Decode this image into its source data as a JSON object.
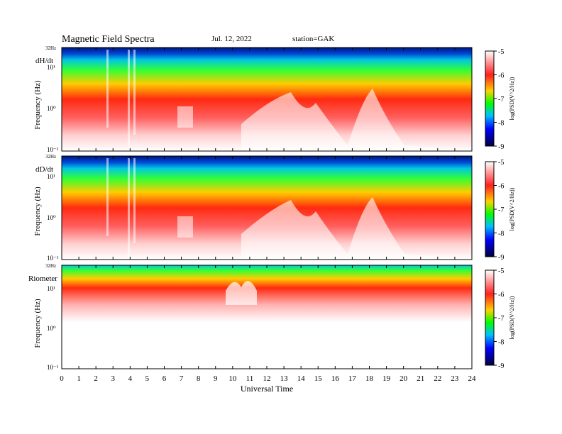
{
  "header": {
    "title": "Magnetic  Field  Spectra",
    "date": "Jul.  12, 2022",
    "station": "station=GAK"
  },
  "colorbar": {
    "label": "log(PSD(V^2/Hz))",
    "ticks": [
      "-5",
      "-6",
      "-7",
      "-8",
      "-9"
    ],
    "range": [
      -9,
      -5
    ],
    "stops": [
      "#ffffff",
      "#ff2020",
      "#ffd000",
      "#00ff00",
      "#00c0ff",
      "#0000ff",
      "#000040"
    ]
  },
  "chart_data": [
    {
      "type": "heatmap",
      "panel_label": "dH/dt",
      "ylabel": "Frequency  (Hz)",
      "yticks": [
        "32Hz",
        "10¹",
        "10⁰",
        "10⁻¹"
      ],
      "ylim": [
        0.1,
        32
      ],
      "xlabel": "",
      "xlim": [
        0,
        24
      ],
      "zlim": [
        -9,
        -5
      ],
      "scale": "log-frequency"
    },
    {
      "type": "heatmap",
      "panel_label": "dD/dt",
      "ylabel": "Frequency  (Hz)",
      "yticks": [
        "32Hz",
        "10¹",
        "10⁰",
        "10⁻¹"
      ],
      "ylim": [
        0.1,
        32
      ],
      "xlabel": "",
      "xlim": [
        0,
        24
      ],
      "zlim": [
        -9,
        -5
      ],
      "scale": "log-frequency"
    },
    {
      "type": "heatmap",
      "panel_label": "Riometer",
      "ylabel": "Frequency  (Hz)",
      "yticks": [
        "32Hz",
        "10¹",
        "10⁰",
        "10⁻¹"
      ],
      "ylim": [
        0.1,
        32
      ],
      "xlabel": "Universal  Time",
      "xticks": [
        "0",
        "1",
        "2",
        "3",
        "4",
        "5",
        "6",
        "7",
        "8",
        "9",
        "10",
        "11",
        "12",
        "13",
        "14",
        "15",
        "16",
        "17",
        "18",
        "19",
        "20",
        "21",
        "22",
        "23",
        "24"
      ],
      "xlim": [
        0,
        24
      ],
      "zlim": [
        -9,
        -5
      ],
      "scale": "log-frequency"
    }
  ]
}
